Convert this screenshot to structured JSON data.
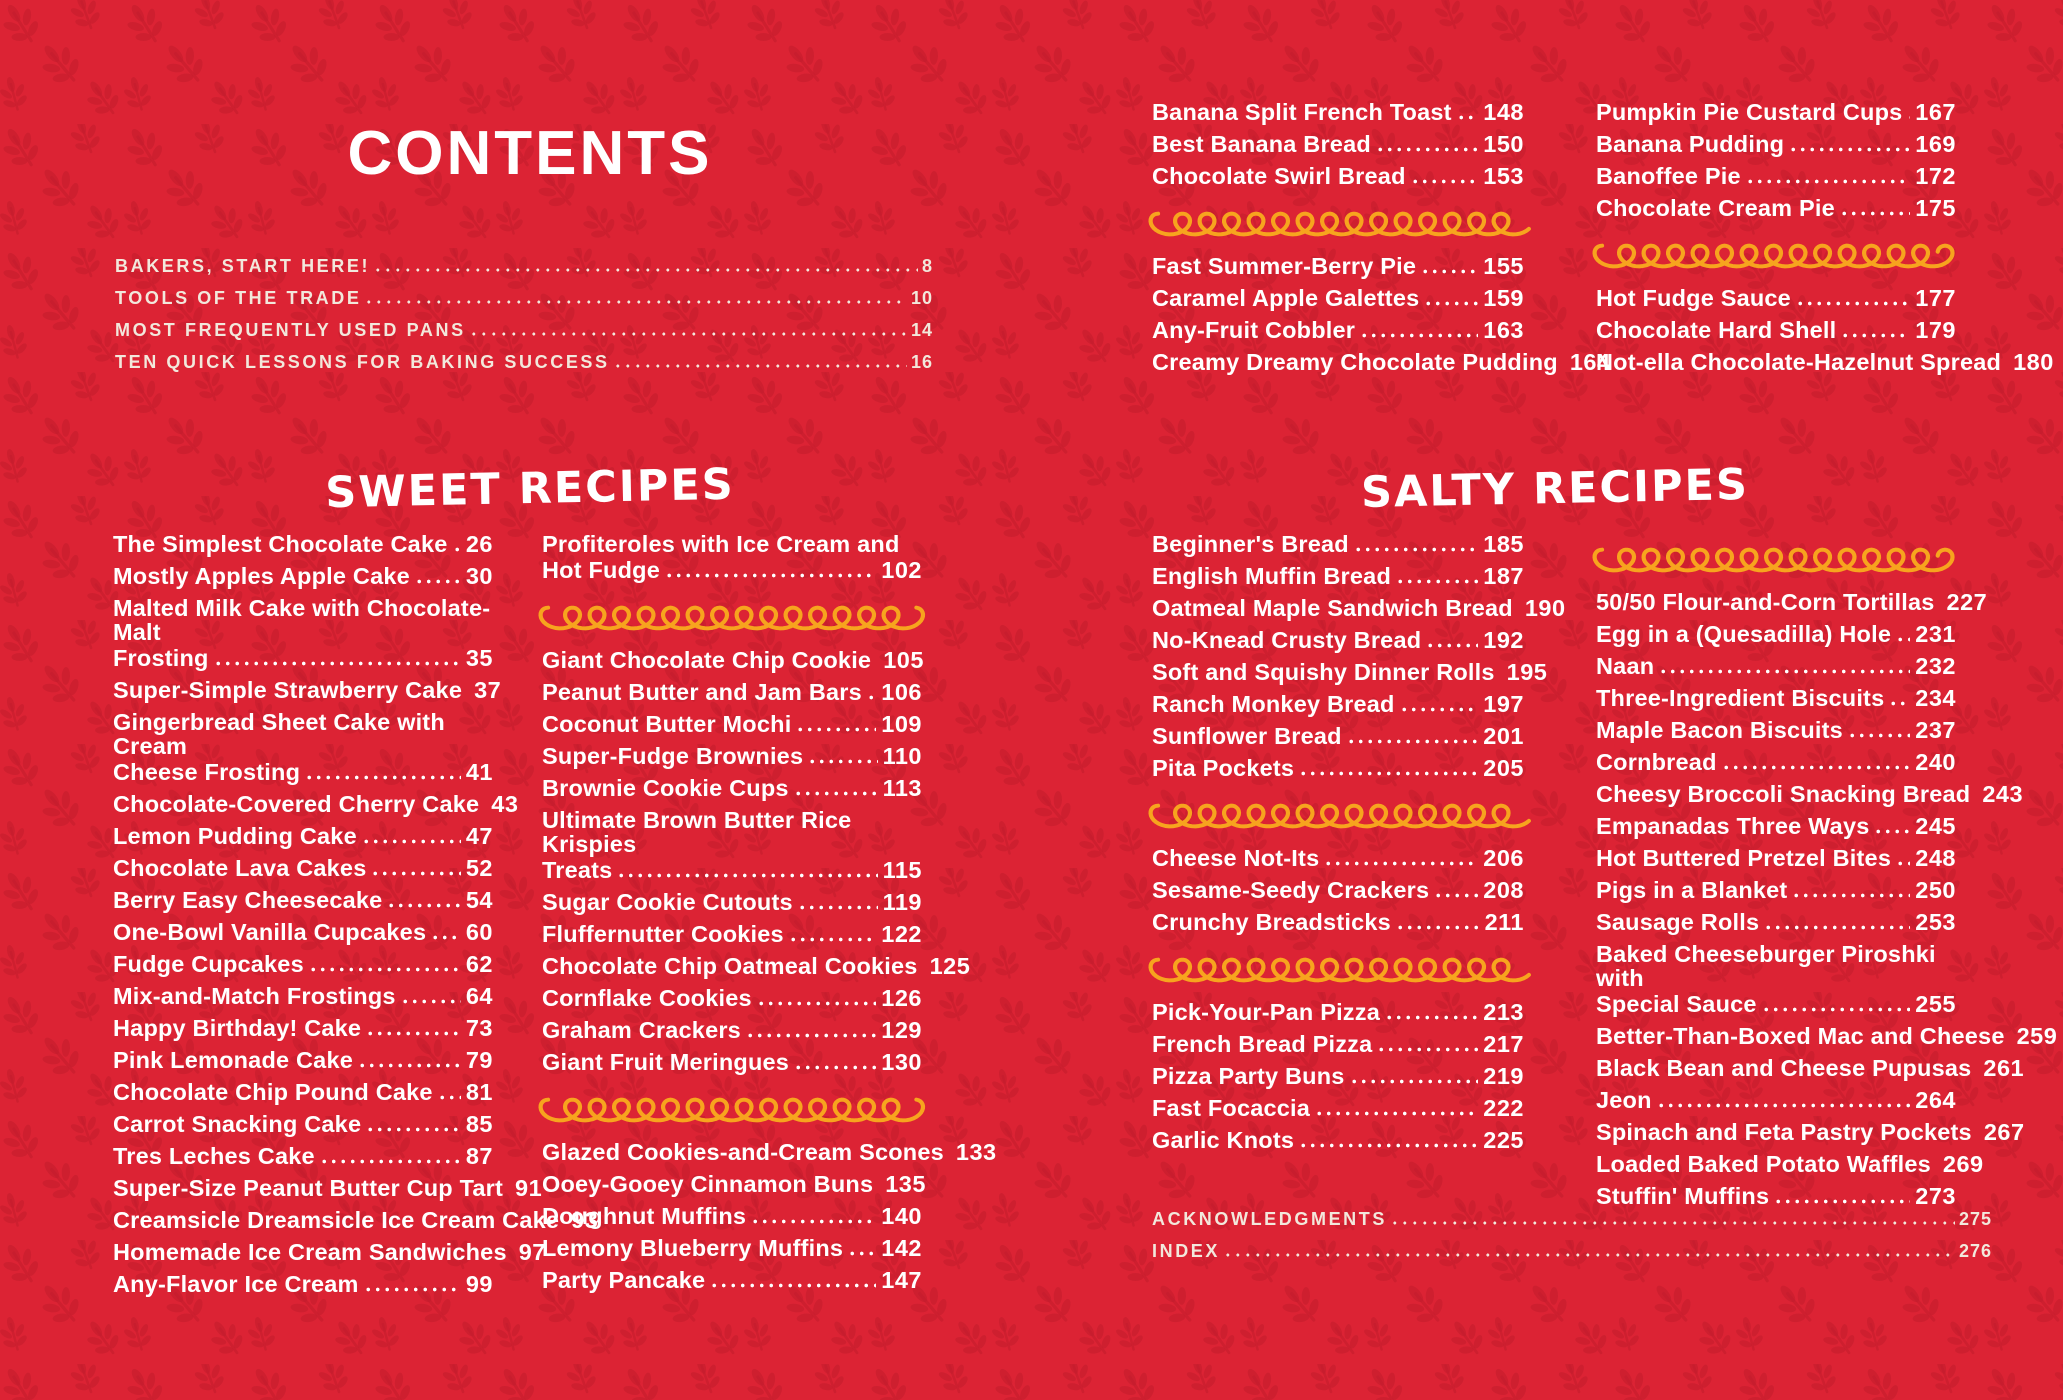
{
  "page": {
    "title": "CONTENTS"
  },
  "colors": {
    "background": "#DC2334",
    "pattern_sprig": "#C21C2B",
    "recipe_text": "#FFFFFF",
    "caps_text": "#F2E8DC",
    "squiggle_gold": "#F7A41E"
  },
  "intro": {
    "blocks": [
      {
        "type": "items",
        "items": [
          {
            "text": "BAKERS, START HERE!",
            "page": "8"
          },
          {
            "text": "TOOLS OF THE TRADE",
            "page": "10"
          },
          {
            "text": "MOST FREQUENTLY USED PANS",
            "page": "14"
          },
          {
            "text": "TEN QUICK LESSONS FOR BAKING SUCCESS",
            "page": "16"
          }
        ]
      }
    ]
  },
  "top_right": {
    "col1": {
      "blocks": [
        {
          "type": "items",
          "items": [
            {
              "text": "Banana Split French Toast",
              "page": "148"
            },
            {
              "text": "Best Banana Bread",
              "page": "150"
            },
            {
              "text": "Chocolate Swirl Bread",
              "page": "153"
            }
          ]
        },
        {
          "type": "squiggle"
        },
        {
          "type": "items",
          "items": [
            {
              "text": "Fast Summer-Berry Pie",
              "page": "155"
            },
            {
              "text": "Caramel Apple Galettes",
              "page": "159"
            },
            {
              "text": "Any-Fruit Cobbler",
              "page": "163"
            },
            {
              "text": "Creamy Dreamy Chocolate Pudding",
              "page": "164"
            }
          ]
        }
      ]
    },
    "col2": {
      "blocks": [
        {
          "type": "items",
          "items": [
            {
              "text": "Pumpkin Pie Custard Cups",
              "page": "167"
            },
            {
              "text": "Banana Pudding",
              "page": "169"
            },
            {
              "text": "Banoffee Pie",
              "page": "172"
            },
            {
              "text": "Chocolate Cream Pie",
              "page": "175"
            }
          ]
        },
        {
          "type": "squiggle"
        },
        {
          "type": "items",
          "items": [
            {
              "text": "Hot Fudge Sauce",
              "page": "177"
            },
            {
              "text": "Chocolate Hard Shell",
              "page": "179"
            },
            {
              "text": "Not-ella Chocolate-Hazelnut Spread",
              "page": "180"
            }
          ]
        }
      ]
    }
  },
  "sweet": {
    "heading": "SWEET RECIPES",
    "col1": {
      "blocks": [
        {
          "type": "items",
          "items": [
            {
              "text": "The Simplest Chocolate Cake",
              "page": "26"
            },
            {
              "text": "Mostly Apples Apple Cake",
              "page": "30"
            },
            {
              "pre": "Malted Milk Cake with Chocolate-Malt",
              "text": "Frosting",
              "page": "35"
            },
            {
              "text": "Super-Simple Strawberry Cake",
              "page": "37"
            },
            {
              "pre": "Gingerbread Sheet Cake with Cream",
              "text": "Cheese Frosting",
              "page": "41"
            },
            {
              "text": "Chocolate-Covered Cherry Cake",
              "page": "43"
            },
            {
              "text": "Lemon Pudding Cake",
              "page": "47"
            },
            {
              "text": "Chocolate Lava Cakes",
              "page": "52"
            },
            {
              "text": "Berry Easy Cheesecake",
              "page": "54"
            },
            {
              "text": "One-Bowl Vanilla Cupcakes",
              "page": "60"
            },
            {
              "text": "Fudge Cupcakes",
              "page": "62"
            },
            {
              "text": "Mix-and-Match Frostings",
              "page": "64"
            },
            {
              "text": "Happy Birthday! Cake",
              "page": "73"
            },
            {
              "text": "Pink Lemonade Cake",
              "page": "79"
            },
            {
              "text": "Chocolate Chip Pound Cake",
              "page": "81"
            },
            {
              "text": "Carrot Snacking Cake",
              "page": "85"
            },
            {
              "text": "Tres Leches Cake",
              "page": "87"
            },
            {
              "text": "Super-Size Peanut Butter Cup Tart",
              "page": "91"
            },
            {
              "text": "Creamsicle Dreamsicle Ice Cream Cake",
              "page": "93"
            },
            {
              "text": "Homemade Ice Cream Sandwiches",
              "page": "97"
            },
            {
              "text": "Any-Flavor Ice Cream",
              "page": "99"
            }
          ]
        }
      ]
    },
    "col2": {
      "blocks": [
        {
          "type": "items",
          "items": [
            {
              "pre": "Profiteroles with Ice Cream and",
              "text": "Hot Fudge",
              "page": "102"
            }
          ]
        },
        {
          "type": "squiggle"
        },
        {
          "type": "items",
          "items": [
            {
              "text": "Giant Chocolate Chip Cookie",
              "page": "105"
            },
            {
              "text": "Peanut Butter and Jam Bars",
              "page": "106"
            },
            {
              "text": "Coconut Butter Mochi",
              "page": "109"
            },
            {
              "text": "Super-Fudge Brownies",
              "page": "110"
            },
            {
              "text": "Brownie Cookie Cups",
              "page": "113"
            },
            {
              "pre": "Ultimate Brown Butter Rice Krispies",
              "text": "Treats",
              "page": "115"
            },
            {
              "text": "Sugar Cookie Cutouts",
              "page": "119"
            },
            {
              "text": "Fluffernutter Cookies",
              "page": "122"
            },
            {
              "text": "Chocolate Chip Oatmeal Cookies",
              "page": "125"
            },
            {
              "text": "Cornflake Cookies",
              "page": "126"
            },
            {
              "text": "Graham Crackers",
              "page": "129"
            },
            {
              "text": "Giant Fruit Meringues",
              "page": "130"
            }
          ]
        },
        {
          "type": "squiggle"
        },
        {
          "type": "items",
          "items": [
            {
              "text": "Glazed Cookies-and-Cream Scones",
              "page": "133"
            },
            {
              "text": "Ooey-Gooey Cinnamon Buns",
              "page": "135"
            },
            {
              "text": "Doughnut Muffins",
              "page": "140"
            },
            {
              "text": "Lemony Blueberry Muffins",
              "page": "142"
            },
            {
              "text": "Party Pancake",
              "page": "147"
            }
          ]
        }
      ]
    }
  },
  "salty": {
    "heading": "SALTY RECIPES",
    "col1": {
      "blocks": [
        {
          "type": "items",
          "items": [
            {
              "text": "Beginner's Bread",
              "page": "185"
            },
            {
              "text": "English Muffin Bread",
              "page": "187"
            },
            {
              "text": "Oatmeal Maple Sandwich Bread",
              "page": "190"
            },
            {
              "text": "No-Knead Crusty Bread",
              "page": "192"
            },
            {
              "text": "Soft and Squishy Dinner Rolls",
              "page": "195"
            },
            {
              "text": "Ranch Monkey Bread",
              "page": "197"
            },
            {
              "text": "Sunflower Bread",
              "page": "201"
            },
            {
              "text": "Pita Pockets",
              "page": "205"
            }
          ]
        },
        {
          "type": "squiggle"
        },
        {
          "type": "items",
          "items": [
            {
              "text": "Cheese Not-Its",
              "page": "206"
            },
            {
              "text": "Sesame-Seedy Crackers",
              "page": "208"
            },
            {
              "text": "Crunchy Breadsticks",
              "page": "211"
            }
          ]
        },
        {
          "type": "squiggle"
        },
        {
          "type": "items",
          "items": [
            {
              "text": "Pick-Your-Pan Pizza",
              "page": "213"
            },
            {
              "text": "French Bread Pizza",
              "page": "217"
            },
            {
              "text": "Pizza Party Buns",
              "page": "219"
            },
            {
              "text": "Fast Focaccia",
              "page": "222"
            },
            {
              "text": "Garlic Knots",
              "page": "225"
            }
          ]
        }
      ]
    },
    "col2": {
      "blocks": [
        {
          "type": "squiggle"
        },
        {
          "type": "items",
          "items": [
            {
              "text": "50/50 Flour-and-Corn Tortillas",
              "page": "227"
            },
            {
              "text": "Egg in a (Quesadilla) Hole",
              "page": "231"
            },
            {
              "text": "Naan",
              "page": "232"
            },
            {
              "text": "Three-Ingredient Biscuits",
              "page": "234"
            },
            {
              "text": "Maple Bacon Biscuits",
              "page": "237"
            },
            {
              "text": "Cornbread",
              "page": "240"
            },
            {
              "text": "Cheesy Broccoli Snacking Bread",
              "page": "243"
            },
            {
              "text": "Empanadas Three Ways",
              "page": "245"
            },
            {
              "text": "Hot Buttered Pretzel Bites",
              "page": "248"
            },
            {
              "text": "Pigs in a Blanket",
              "page": "250"
            },
            {
              "text": "Sausage Rolls",
              "page": "253"
            },
            {
              "pre": "Baked Cheeseburger Piroshki with",
              "text": "Special Sauce",
              "page": "255"
            },
            {
              "text": "Better-Than-Boxed Mac and Cheese",
              "page": "259"
            },
            {
              "text": "Black Bean and Cheese Pupusas",
              "page": "261"
            },
            {
              "text": "Jeon",
              "page": "264"
            },
            {
              "text": "Spinach and Feta Pastry Pockets",
              "page": "267"
            },
            {
              "text": "Loaded Baked Potato Waffles",
              "page": "269"
            },
            {
              "text": "Stuffin' Muffins",
              "page": "273"
            }
          ]
        }
      ]
    }
  },
  "footer": {
    "blocks": [
      {
        "type": "items",
        "items": [
          {
            "text": "ACKNOWLEDGMENTS",
            "page": "275"
          },
          {
            "text": "INDEX",
            "page": "276"
          }
        ]
      }
    ]
  }
}
